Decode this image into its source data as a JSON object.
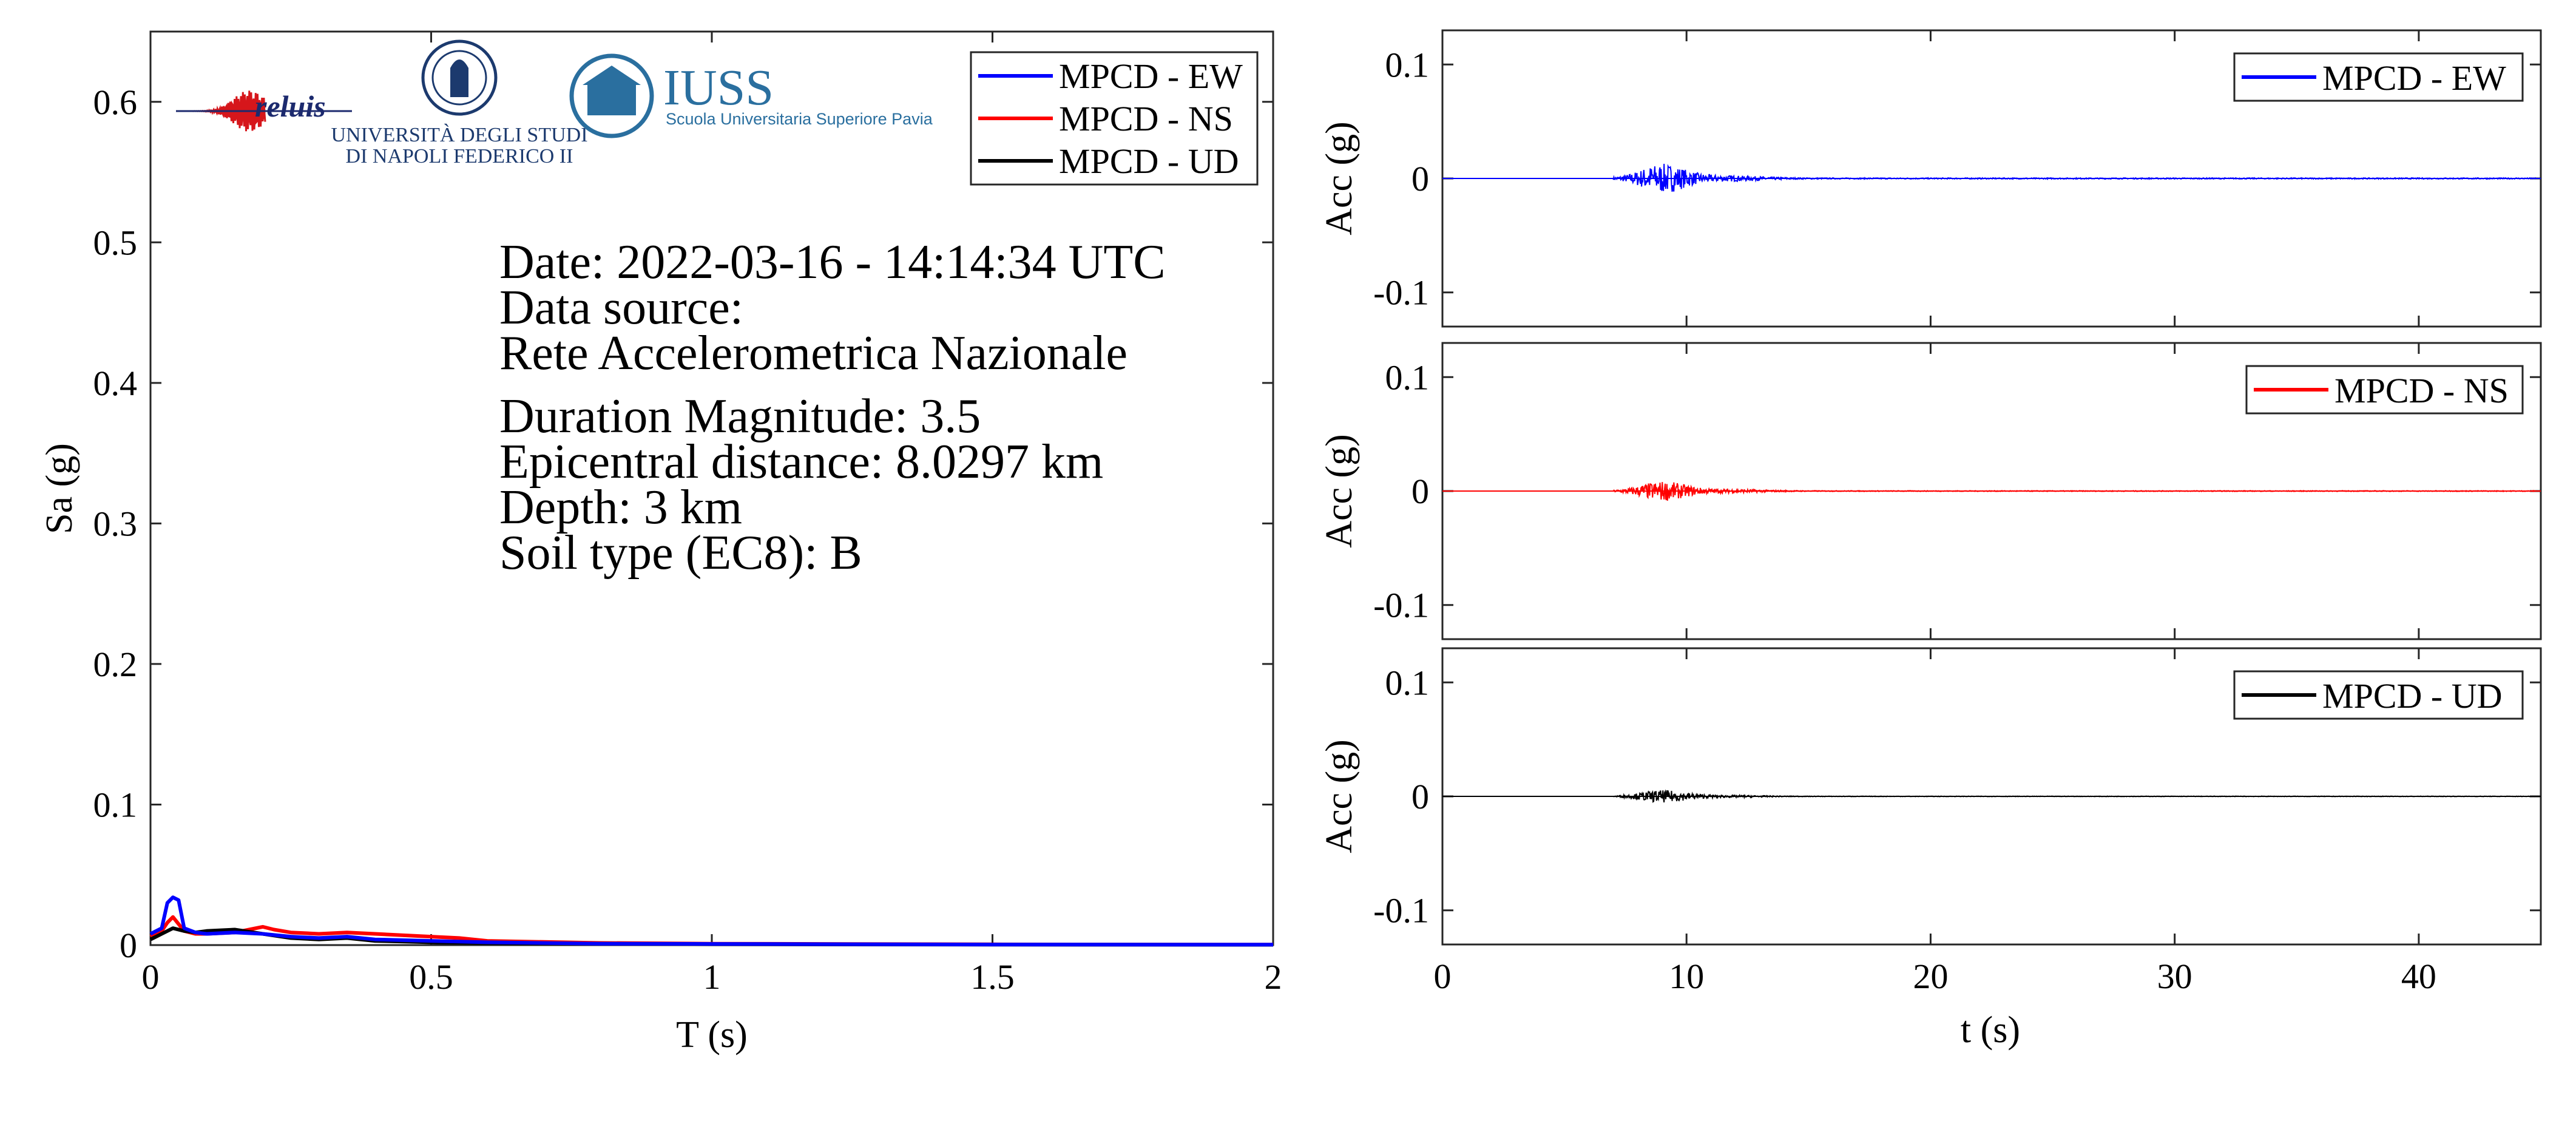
{
  "colors": {
    "ew": "#0000ff",
    "ns": "#ff0000",
    "ud": "#000000",
    "iuss": "#2a6f9f"
  },
  "logos": {
    "reluis": "reluis",
    "unina_line1": "UNIVERSITÀ DEGLI STUDI",
    "unina_line2": "DI NAPOLI FEDERICO II",
    "iuss_title": "IUSS",
    "iuss_subtitle": "Scuola Universitaria Superiore Pavia"
  },
  "info": {
    "date": "Date: 2022-03-16 - 14:14:34 UTC",
    "source_label": "Data source:",
    "source_name": "Rete Accelerometrica Nazionale",
    "magnitude": "Duration Magnitude: 3.5",
    "distance": "Epicentral distance: 8.0297 km",
    "depth": "Depth: 3 km",
    "soil": "Soil type (EC8): B"
  },
  "chart_data": [
    {
      "type": "line",
      "xlabel": "T (s)",
      "ylabel": "Sa (g)",
      "xlim": [
        0,
        2
      ],
      "ylim": [
        0,
        0.65
      ],
      "xticks": [
        0,
        0.5,
        1,
        1.5,
        2
      ],
      "xtick_labels": [
        "0",
        "0.5",
        "1",
        "1.5",
        "2"
      ],
      "yticks": [
        0,
        0.1,
        0.2,
        0.3,
        0.4,
        0.5,
        0.6
      ],
      "ytick_labels": [
        "0",
        "0.1",
        "0.2",
        "0.3",
        "0.4",
        "0.5",
        "0.6"
      ],
      "legend_position": "top-right",
      "series": [
        {
          "name": "MPCD - EW",
          "color": "#0000ff",
          "x": [
            0,
            0.02,
            0.03,
            0.04,
            0.05,
            0.06,
            0.08,
            0.1,
            0.15,
            0.2,
            0.25,
            0.3,
            0.35,
            0.4,
            0.5,
            0.6,
            0.8,
            1.0,
            1.5,
            2.0
          ],
          "y": [
            0.008,
            0.012,
            0.03,
            0.034,
            0.032,
            0.012,
            0.009,
            0.008,
            0.009,
            0.008,
            0.006,
            0.005,
            0.006,
            0.004,
            0.003,
            0.002,
            0.001,
            0.0008,
            0.0004,
            0.0003
          ]
        },
        {
          "name": "MPCD - NS",
          "color": "#ff0000",
          "x": [
            0,
            0.02,
            0.03,
            0.04,
            0.06,
            0.08,
            0.1,
            0.15,
            0.2,
            0.22,
            0.25,
            0.3,
            0.35,
            0.4,
            0.5,
            0.55,
            0.6,
            0.8,
            1.0,
            1.5,
            2.0
          ],
          "y": [
            0.006,
            0.01,
            0.016,
            0.02,
            0.01,
            0.008,
            0.008,
            0.009,
            0.013,
            0.011,
            0.009,
            0.008,
            0.009,
            0.008,
            0.006,
            0.005,
            0.003,
            0.0015,
            0.001,
            0.0005,
            0.0003
          ]
        },
        {
          "name": "MPCD - UD",
          "color": "#000000",
          "x": [
            0,
            0.02,
            0.04,
            0.06,
            0.08,
            0.1,
            0.15,
            0.2,
            0.25,
            0.3,
            0.35,
            0.4,
            0.5,
            0.6,
            0.8,
            1.0,
            1.5,
            2.0
          ],
          "y": [
            0.004,
            0.008,
            0.012,
            0.01,
            0.009,
            0.01,
            0.011,
            0.008,
            0.005,
            0.004,
            0.005,
            0.003,
            0.002,
            0.0015,
            0.001,
            0.0006,
            0.0003,
            0.0002
          ]
        }
      ]
    },
    {
      "type": "line",
      "xlabel": "",
      "ylabel": "Acc (g)",
      "xlim": [
        0,
        45
      ],
      "ylim": [
        -0.13,
        0.13
      ],
      "yticks": [
        -0.1,
        0,
        0.1
      ],
      "ytick_labels": [
        "-0.1",
        "0",
        "0.1"
      ],
      "legend_position": "top-right",
      "series": [
        {
          "name": "MPCD - EW",
          "color": "#0000ff",
          "peak": 0.012,
          "record_start": 7.0,
          "record_end": 44.8
        }
      ]
    },
    {
      "type": "line",
      "xlabel": "",
      "ylabel": "Acc (g)",
      "xlim": [
        0,
        45
      ],
      "ylim": [
        -0.13,
        0.13
      ],
      "yticks": [
        -0.1,
        0,
        0.1
      ],
      "ytick_labels": [
        "-0.1",
        "0",
        "0.1"
      ],
      "legend_position": "top-right",
      "series": [
        {
          "name": "MPCD - NS",
          "color": "#ff0000",
          "peak": 0.008,
          "record_start": 7.0,
          "record_end": 44.8
        }
      ]
    },
    {
      "type": "line",
      "xlabel": "t (s)",
      "ylabel": "Acc (g)",
      "xlim": [
        0,
        45
      ],
      "ylim": [
        -0.13,
        0.13
      ],
      "xticks": [
        0,
        10,
        20,
        30,
        40
      ],
      "xtick_labels": [
        "0",
        "10",
        "20",
        "30",
        "40"
      ],
      "yticks": [
        -0.1,
        0,
        0.1
      ],
      "ytick_labels": [
        "-0.1",
        "0",
        "0.1"
      ],
      "legend_position": "top-right",
      "series": [
        {
          "name": "MPCD - UD",
          "color": "#000000",
          "peak": 0.005,
          "record_start": 7.0,
          "record_end": 44.8
        }
      ]
    }
  ]
}
